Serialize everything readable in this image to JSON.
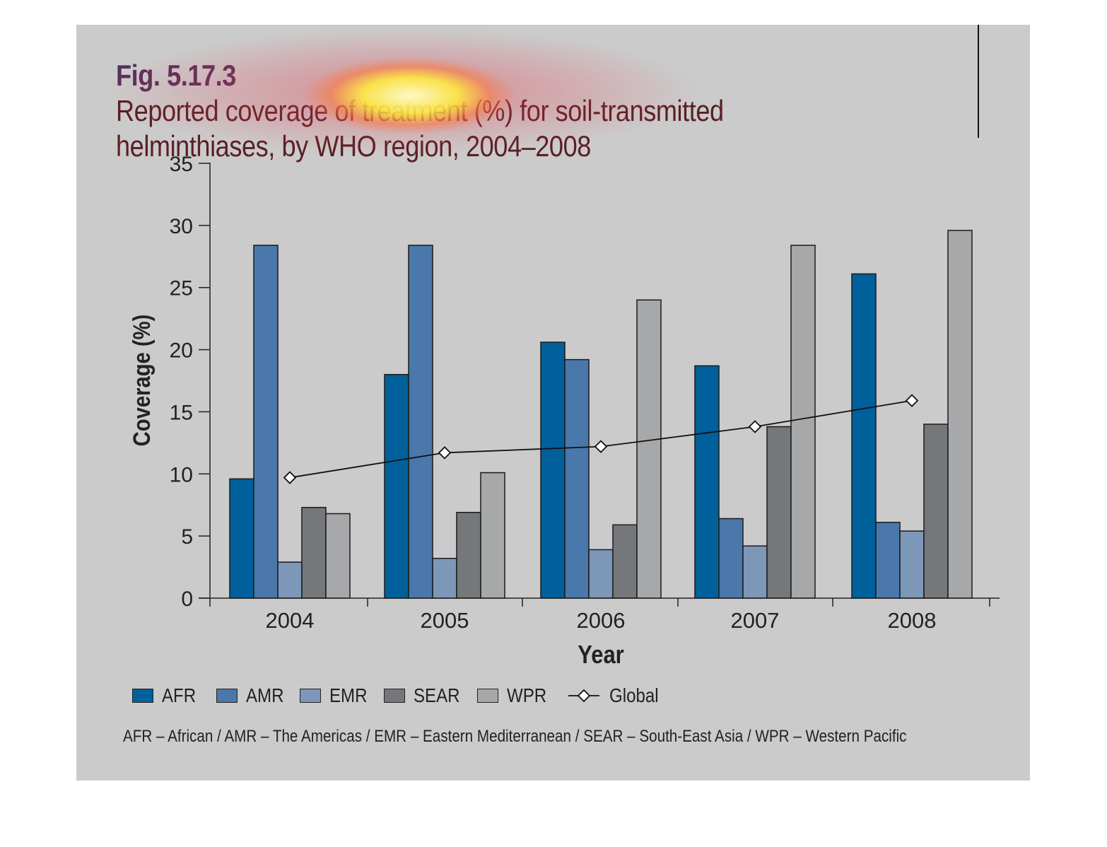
{
  "title": {
    "fig_label": "Fig. 5.17.3",
    "text": "Reported coverage of treatment (%) for soil-transmitted helminthiases, by WHO region, 2004–2008"
  },
  "footnote": "AFR – African / AMR – The Americas / EMR – Eastern Mediterranean / SEAR – South-East Asia / WPR – Western Pacific",
  "colors": {
    "background": "#cbcbcb",
    "AFR": "#00609c",
    "AMR": "#4a78ab",
    "EMR": "#7d97b9",
    "SEAR": "#75777b",
    "WPR": "#a7a8aa",
    "Global": "#111111"
  },
  "chart_data": {
    "type": "bar",
    "title": "Reported coverage of treatment (%) for soil-transmitted helminthiases, by WHO region, 2004–2008",
    "xlabel": "Year",
    "ylabel": "Coverage (%)",
    "ylim": [
      0,
      35
    ],
    "yticks": [
      0,
      5,
      10,
      15,
      20,
      25,
      30,
      35
    ],
    "grid": false,
    "legend_position": "bottom",
    "categories": [
      "2004",
      "2005",
      "2006",
      "2007",
      "2008"
    ],
    "series": [
      {
        "name": "AFR",
        "values": [
          9.6,
          18.0,
          20.6,
          18.7,
          26.1
        ]
      },
      {
        "name": "AMR",
        "values": [
          28.4,
          28.4,
          19.2,
          6.4,
          6.1
        ]
      },
      {
        "name": "EMR",
        "values": [
          2.9,
          3.2,
          3.9,
          4.2,
          5.4
        ]
      },
      {
        "name": "SEAR",
        "values": [
          7.3,
          6.9,
          5.9,
          13.8,
          14.0
        ]
      },
      {
        "name": "WPR",
        "values": [
          6.8,
          10.1,
          24.0,
          28.4,
          29.6
        ]
      }
    ],
    "line_series": [
      {
        "name": "Global",
        "marker": "diamond",
        "values": [
          9.7,
          11.7,
          12.2,
          13.8,
          15.9
        ]
      }
    ]
  }
}
